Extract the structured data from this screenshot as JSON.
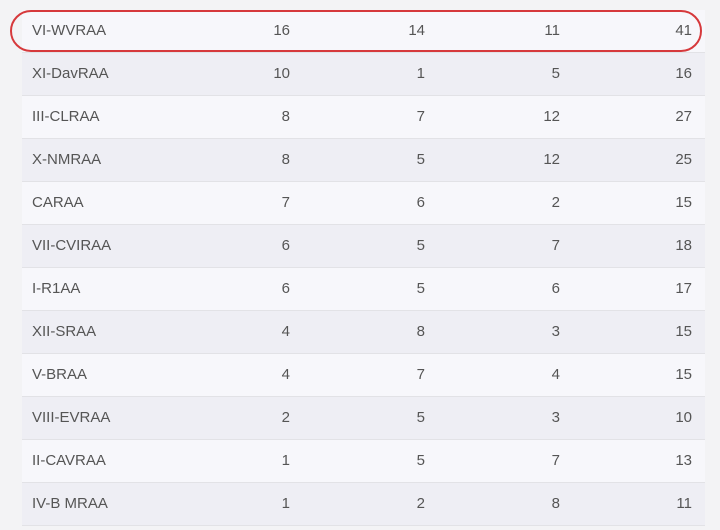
{
  "table": {
    "rows": [
      [
        "VI-WVRAA",
        16,
        14,
        11,
        41
      ],
      [
        "XI-DavRAA",
        10,
        1,
        5,
        16
      ],
      [
        "III-CLRAA",
        8,
        7,
        12,
        27
      ],
      [
        "X-NMRAA",
        8,
        5,
        12,
        25
      ],
      [
        "CARAA",
        7,
        6,
        2,
        15
      ],
      [
        "VII-CVIRAA",
        6,
        5,
        7,
        18
      ],
      [
        "I-R1AA",
        6,
        5,
        6,
        17
      ],
      [
        "XII-SRAA",
        4,
        8,
        3,
        15
      ],
      [
        "V-BRAA",
        4,
        7,
        4,
        15
      ],
      [
        "VIII-EVRAA",
        2,
        5,
        3,
        10
      ],
      [
        "II-CAVRAA",
        1,
        5,
        7,
        13
      ],
      [
        "IV-B MRAA",
        1,
        2,
        8,
        11
      ]
    ]
  }
}
